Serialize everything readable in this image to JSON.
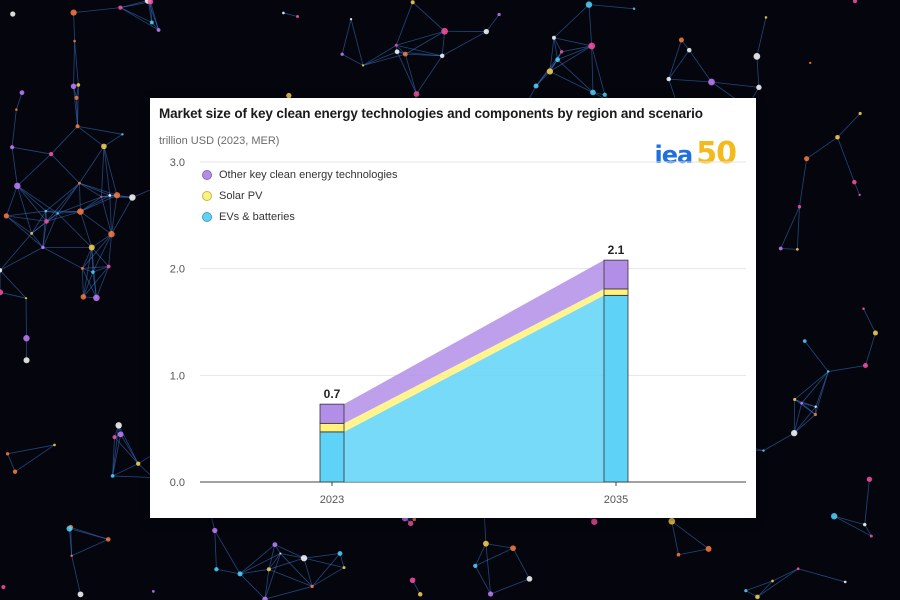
{
  "card": {
    "title": "Market size of key clean energy technologies and components by region and scenario",
    "unit": "trillion USD (2023, MER)",
    "logo": {
      "text1": "iea",
      "text2": "50"
    }
  },
  "chart_data": {
    "type": "area",
    "title": "Market size of key clean energy technologies and components by region and scenario",
    "ylabel": "trillion USD (2023, MER)",
    "xlabel": "",
    "categories": [
      "2023",
      "2035"
    ],
    "ylim": [
      0,
      3.0
    ],
    "yticks": [
      "0.0",
      "1.0",
      "2.0",
      "3.0"
    ],
    "grid": true,
    "legend_position": "top-left",
    "series": [
      {
        "name": "EVs & batteries",
        "values": [
          0.47,
          1.75
        ],
        "color": "#5fd3f7"
      },
      {
        "name": "Solar PV",
        "values": [
          0.08,
          0.06
        ],
        "color": "#fff27a"
      },
      {
        "name": "Other key clean energy technologies",
        "values": [
          0.18,
          0.27
        ],
        "color": "#b38ee8"
      }
    ],
    "totals": [
      "0.7",
      "2.1"
    ],
    "legend_order": [
      "Other key clean energy technologies",
      "Solar PV",
      "EVs & batteries"
    ]
  }
}
